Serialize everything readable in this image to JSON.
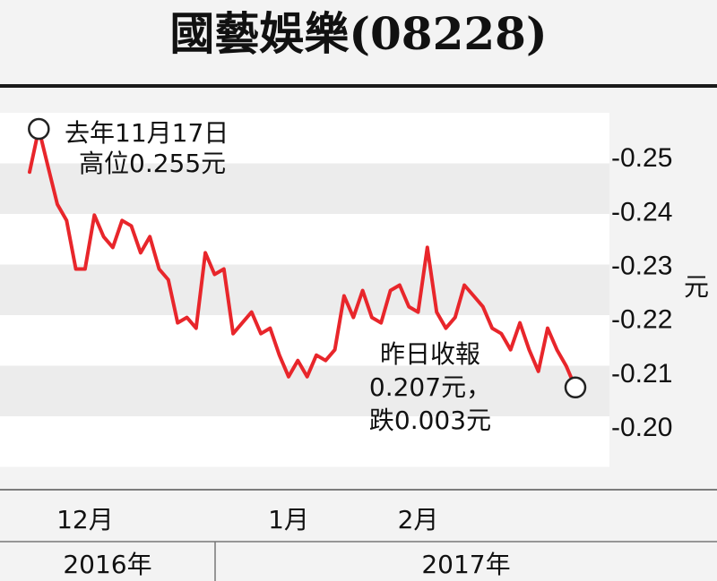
{
  "chart_data": {
    "type": "line",
    "title": "國藝娛樂(08228)",
    "ylabel": "元",
    "ylim": [
      0.195,
      0.258
    ],
    "y_ticks": [
      "-0.25",
      "-0.24",
      "-0.23",
      "-0.22",
      "-0.21",
      "-0.20"
    ],
    "y_tick_values": [
      0.25,
      0.24,
      0.23,
      0.22,
      0.21,
      0.2
    ],
    "x_ticks": [
      "12月",
      "1月",
      "2月"
    ],
    "x_tick_index": [
      6,
      28,
      42
    ],
    "year_labels": [
      "2016年",
      "2017年"
    ],
    "series": [
      {
        "color": "#e8262b",
        "values": [
          0.247,
          0.255,
          0.248,
          0.241,
          0.238,
          0.229,
          0.229,
          0.239,
          0.235,
          0.233,
          0.238,
          0.237,
          0.232,
          0.235,
          0.229,
          0.227,
          0.219,
          0.22,
          0.218,
          0.232,
          0.228,
          0.229,
          0.217,
          0.219,
          0.221,
          0.217,
          0.218,
          0.213,
          0.209,
          0.212,
          0.209,
          0.213,
          0.212,
          0.214,
          0.224,
          0.22,
          0.225,
          0.22,
          0.219,
          0.225,
          0.226,
          0.222,
          0.221,
          0.233,
          0.221,
          0.218,
          0.22,
          0.226,
          0.224,
          0.222,
          0.218,
          0.217,
          0.214,
          0.219,
          0.214,
          0.21,
          0.218,
          0.214,
          0.211,
          0.207
        ]
      }
    ],
    "annotations": [
      {
        "index": 1,
        "lines": [
          "去年11月17日",
          "高位0.255元"
        ]
      },
      {
        "index": 59,
        "lines": [
          "昨日收報",
          "0.207元，",
          "跌0.003元"
        ]
      }
    ]
  }
}
